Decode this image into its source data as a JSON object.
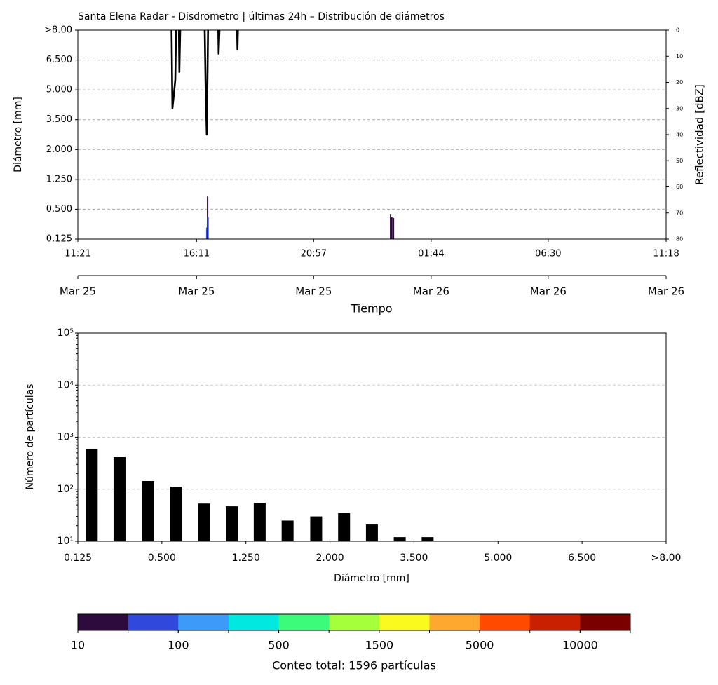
{
  "chart_data": [
    {
      "type": "line",
      "title": "Santa Elena Radar - Disdrometro | últimas 24h – Distribución de diámetros",
      "ylabel": "Diámetro [mm]",
      "y2label": "Reflectividad [dBZ]",
      "xlabel": "Tiempo",
      "xlim": [
        "11:21",
        "11:18"
      ],
      "xticks": [
        "11:21",
        "16:11",
        "20:57",
        "01:44",
        "06:30",
        "11:18"
      ],
      "x2ticks": [
        "Mar 25",
        "Mar 25",
        "Mar 25",
        "Mar 26",
        "Mar 26",
        "Mar 26"
      ],
      "yticks": [
        0.125,
        {
          "value": 0.5,
          "label": "0.500"
        },
        {
          "value": 1.25,
          "label": "1.250"
        },
        {
          "value": 2,
          "label": "2.000"
        },
        {
          "value": 3.5,
          "label": "3.500"
        },
        {
          "value": 5,
          "label": "5.000"
        },
        {
          "value": 6.5,
          "label": "6.500"
        },
        {
          "value": 8,
          "label": ">8.00"
        }
      ],
      "y2lim": [
        0,
        80
      ],
      "y2_inverted": true,
      "y2ticks": [
        0,
        10,
        20,
        30,
        40,
        50,
        60,
        70,
        80
      ],
      "grid": true,
      "series": [
        {
          "color": "#000000",
          "axis": "y2",
          "x": [
            "15:10",
            "15:12",
            "15:16",
            "15:19",
            "15:21",
            null,
            "15:28",
            "15:29",
            "15:31",
            null,
            "16:31",
            "16:33",
            "16:36",
            "16:38",
            "16:39",
            null,
            "17:04",
            "17:05",
            "17:07",
            null,
            "17:50",
            "17:51",
            "17:52"
          ],
          "values": [
            0,
            30,
            24,
            19,
            0,
            null,
            0,
            16,
            0,
            null,
            0,
            21,
            40,
            14,
            0,
            null,
            0,
            9,
            0,
            null,
            0,
            7.5,
            0
          ]
        }
      ],
      "cells": {
        "x": [
          "16:36",
          "16:38",
          "16:39",
          "00:05",
          "00:08",
          "00:12"
        ],
        "values": [
          0.27,
          0.82,
          0.4,
          0.44,
          0.4,
          0.39
        ],
        "colors": [
          "#3048dc",
          "#2d0b3c",
          "#3048dc",
          "#2d0b3c",
          "#2d0b3c",
          "#2d0b3c"
        ]
      }
    },
    {
      "type": "bar",
      "xlabel": "Diámetro [mm]",
      "ylabel": "Número de partículas",
      "xticks": [
        0.125,
        {
          "value": 0.5,
          "label": "0.500"
        },
        {
          "value": 1.25,
          "label": "1.250"
        },
        {
          "value": 2,
          "label": "2.000"
        },
        {
          "value": 3.5,
          "label": "3.500"
        },
        {
          "value": 5,
          "label": "5.000"
        },
        {
          "value": 6.5,
          "label": "6.500"
        },
        {
          "value": 8,
          "label": ">8.00"
        }
      ],
      "x": [
        0.187,
        0.311,
        0.439,
        0.627,
        0.877,
        1.124,
        1.373,
        1.622,
        1.877,
        2.252,
        2.749,
        3.246,
        3.743
      ],
      "values": [
        600,
        413,
        144,
        112,
        53,
        47,
        55,
        25,
        30,
        35,
        21,
        12,
        12
      ],
      "color": "#000000",
      "log_y": true,
      "ylim": [
        10,
        100000
      ],
      "yticks": [
        {
          "value": 10,
          "label": "10¹"
        },
        {
          "value": 100,
          "label": "10²"
        },
        {
          "value": 1000,
          "label": "10³"
        },
        {
          "value": 10000,
          "label": "10⁴"
        },
        {
          "value": 100000,
          "label": "10⁵"
        }
      ],
      "grid": true
    },
    {
      "type": "colorbar",
      "colors": [
        "#2d0b3c",
        "#3048dc",
        "#3d9af8",
        "#00e8e0",
        "#3cfa7a",
        "#a5ff3a",
        "#fafa1e",
        "#ffa830",
        "#ff4a00",
        "#c82000",
        "#7a0000"
      ],
      "ticks": [
        10,
        100,
        500,
        1500,
        5000,
        10000
      ],
      "label": "Conteo total: 1596 partículas"
    }
  ]
}
